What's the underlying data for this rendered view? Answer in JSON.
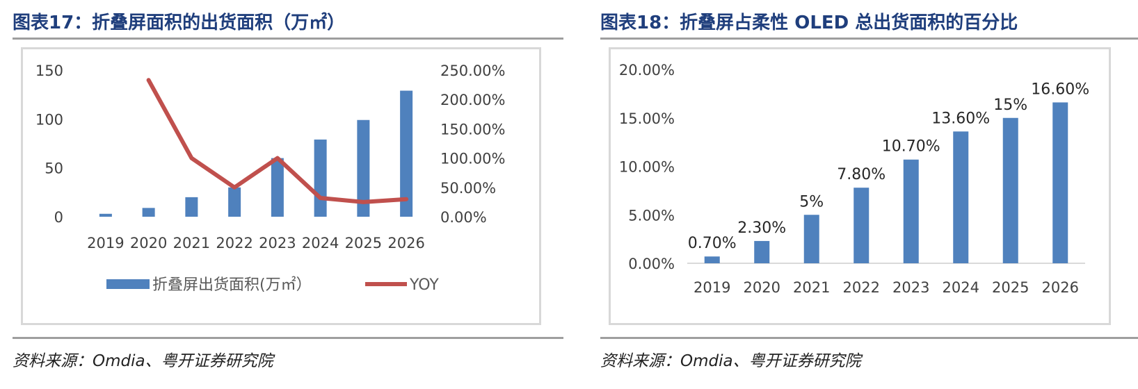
{
  "left": {
    "title": "图表17：折叠屏面积的出货面积（万㎡）",
    "source": "资料来源：Omdia、粤开证券研究院"
  },
  "right": {
    "title": "图表18：折叠屏占柔性 OLED 总出货面积的百分比",
    "source": "资料来源：Omdia、粤开证券研究院"
  },
  "colors": {
    "bar": "#4f81bd",
    "line": "#c0504d",
    "title": "#1f3e7c"
  },
  "chart_data": [
    {
      "type": "bar",
      "categories": [
        "2019",
        "2020",
        "2021",
        "2022",
        "2023",
        "2024",
        "2025",
        "2026"
      ],
      "series": [
        {
          "name": "折叠屏出货面积(万㎡）",
          "type": "bar",
          "axis": "left",
          "values": [
            3,
            9,
            20,
            30,
            60,
            79,
            99,
            129
          ]
        },
        {
          "name": "YOY",
          "type": "line",
          "axis": "right",
          "values": [
            null,
            2.33,
            1.0,
            0.5,
            1.0,
            0.32,
            0.25,
            0.3
          ]
        }
      ],
      "left_ticks": [
        "0",
        "50",
        "100",
        "150"
      ],
      "right_ticks": [
        "0.00%",
        "50.00%",
        "100.00%",
        "150.00%",
        "200.00%",
        "250.00%"
      ],
      "ylim": [
        0,
        150
      ],
      "y2lim": [
        0,
        2.5
      ],
      "legend": "bottom",
      "grid": false
    },
    {
      "type": "bar",
      "categories": [
        "2019",
        "2020",
        "2021",
        "2022",
        "2023",
        "2024",
        "2025",
        "2026"
      ],
      "values": [
        0.7,
        2.3,
        5,
        7.8,
        10.7,
        13.6,
        15,
        16.6
      ],
      "data_labels": [
        "0.70%",
        "2.30%",
        "5%",
        "7.80%",
        "10.70%",
        "13.60%",
        "15%",
        "16.60%"
      ],
      "y_ticks": [
        "0.00%",
        "5.00%",
        "10.00%",
        "15.00%",
        "20.00%"
      ],
      "ylim": [
        0,
        20
      ],
      "grid": false
    }
  ]
}
